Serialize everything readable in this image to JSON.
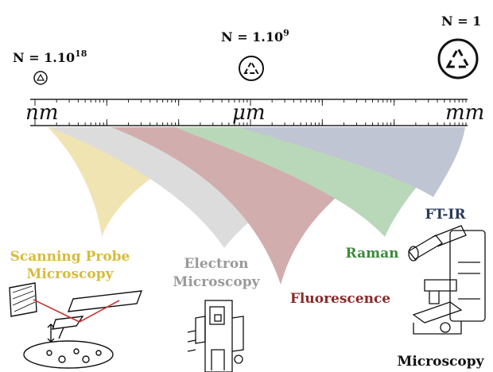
{
  "particles": [
    {
      "prefix": "N = 1.10",
      "exponent": "18"
    },
    {
      "prefix": "N = 1.10",
      "exponent": "9"
    },
    {
      "prefix": "N = 1",
      "exponent": ""
    }
  ],
  "scale": {
    "labels": [
      "nm",
      "μm",
      "mm"
    ]
  },
  "techniques": [
    {
      "lines": [
        "Scanning Probe",
        "Microscopy"
      ],
      "color": "#d8bb3a"
    },
    {
      "lines": [
        "Electron",
        "Microscopy"
      ],
      "color": "#9a9a9a"
    },
    {
      "lines": [
        "Fluorescence"
      ],
      "color": "#8a2a2a"
    },
    {
      "lines": [
        "Raman"
      ],
      "color": "#3c8a3c"
    },
    {
      "lines": [
        "FT-IR"
      ],
      "color": "#2a3a5c"
    }
  ],
  "microscope_caption": "Microscopy",
  "icons": {
    "particle": "recycle-icon",
    "afm": "afm-cantilever-icon",
    "sem": "electron-microscope-icon",
    "optical": "optical-microscope-icon"
  }
}
